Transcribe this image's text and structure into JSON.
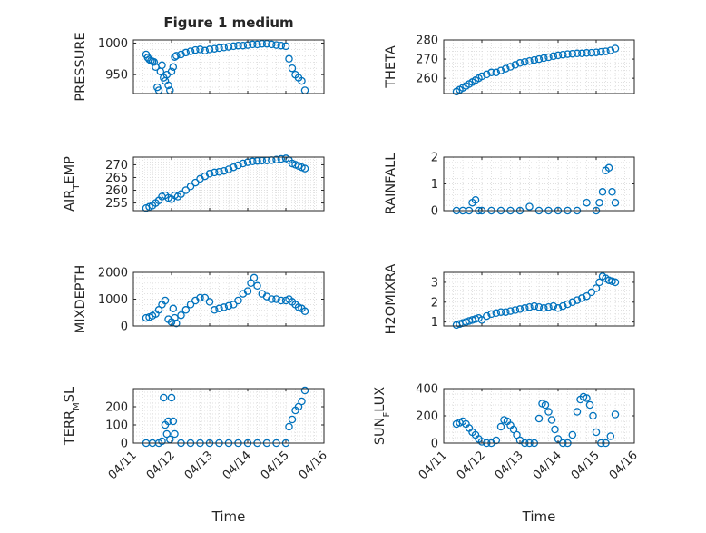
{
  "title": "Figure 1 medium",
  "accent_color": "#0072BD",
  "xlabel": "Time",
  "x_ticks": [
    "04/11",
    "04/12",
    "04/13",
    "04/14",
    "04/15",
    "04/16"
  ],
  "chart_data": [
    {
      "type": "scatter",
      "ylabel": "PRESSURE",
      "ylim": [
        920,
        1005
      ],
      "yticks": [
        950,
        1000
      ],
      "grid": true,
      "x": [
        "04/11 08:00",
        "04/11 09:00",
        "04/11 10:00",
        "04/11 11:00",
        "04/11 12:00",
        "04/11 13:00",
        "04/11 14:00",
        "04/11 15:00",
        "04/11 16:00",
        "04/11 17:00",
        "04/11 18:00",
        "04/11 19:00",
        "04/11 20:00",
        "04/11 21:00",
        "04/11 22:00",
        "04/11 23:00",
        "04/12 00:00",
        "04/12 01:00",
        "04/12 02:00",
        "04/12 03:00",
        "04/12 06:00",
        "04/12 09:00",
        "04/12 12:00",
        "04/12 15:00",
        "04/12 18:00",
        "04/12 21:00",
        "04/13 00:00",
        "04/13 03:00",
        "04/13 06:00",
        "04/13 09:00",
        "04/13 12:00",
        "04/13 15:00",
        "04/13 18:00",
        "04/13 21:00",
        "04/14 00:00",
        "04/14 03:00",
        "04/14 06:00",
        "04/14 09:00",
        "04/14 12:00",
        "04/14 15:00",
        "04/14 18:00",
        "04/14 21:00",
        "04/15 00:00",
        "04/15 02:00",
        "04/15 04:00",
        "04/15 06:00",
        "04/15 08:00",
        "04/15 10:00",
        "04/15 12:00"
      ],
      "y": [
        982,
        977,
        974,
        972,
        971,
        970,
        962,
        930,
        925,
        955,
        965,
        945,
        940,
        950,
        933,
        925,
        955,
        962,
        978,
        980,
        982,
        985,
        987,
        989,
        990,
        988,
        990,
        991,
        992,
        993,
        994,
        995,
        996,
        996,
        997,
        998,
        998,
        999,
        999,
        998,
        997,
        996,
        995,
        975,
        960,
        950,
        945,
        940,
        925
      ]
    },
    {
      "type": "scatter",
      "ylabel": "THETA",
      "ylim": [
        252,
        280
      ],
      "yticks": [
        260,
        270,
        280
      ],
      "grid": true,
      "x": [
        "04/11 08:00",
        "04/11 10:00",
        "04/11 12:00",
        "04/11 14:00",
        "04/11 16:00",
        "04/11 18:00",
        "04/11 20:00",
        "04/11 22:00",
        "04/12 00:00",
        "04/12 03:00",
        "04/12 06:00",
        "04/12 09:00",
        "04/12 12:00",
        "04/12 15:00",
        "04/12 18:00",
        "04/12 21:00",
        "04/13 00:00",
        "04/13 03:00",
        "04/13 06:00",
        "04/13 09:00",
        "04/13 12:00",
        "04/13 15:00",
        "04/13 18:00",
        "04/13 21:00",
        "04/14 00:00",
        "04/14 03:00",
        "04/14 06:00",
        "04/14 09:00",
        "04/14 12:00",
        "04/14 15:00",
        "04/14 18:00",
        "04/14 21:00",
        "04/15 00:00",
        "04/15 03:00",
        "04/15 06:00",
        "04/15 09:00",
        "04/15 12:00"
      ],
      "y": [
        253,
        254,
        255,
        256,
        257,
        258,
        259,
        260,
        261,
        262,
        263,
        263,
        264,
        265,
        266,
        267,
        268,
        268.5,
        269,
        269.5,
        270,
        270.5,
        271,
        271.5,
        272,
        272.3,
        272.6,
        272.8,
        273,
        273,
        273.2,
        273.3,
        273.5,
        273.8,
        274,
        274.5,
        275.5
      ]
    },
    {
      "type": "scatter",
      "ylabel": "AIR_TEMP",
      "ylim": [
        252,
        273
      ],
      "yticks": [
        255,
        260,
        265,
        270
      ],
      "grid": true,
      "x": [
        "04/11 08:00",
        "04/11 10:00",
        "04/11 12:00",
        "04/11 14:00",
        "04/11 16:00",
        "04/11 18:00",
        "04/11 20:00",
        "04/11 22:00",
        "04/12 00:00",
        "04/12 02:00",
        "04/12 04:00",
        "04/12 06:00",
        "04/12 09:00",
        "04/12 12:00",
        "04/12 15:00",
        "04/12 18:00",
        "04/12 21:00",
        "04/13 00:00",
        "04/13 03:00",
        "04/13 06:00",
        "04/13 09:00",
        "04/13 12:00",
        "04/13 15:00",
        "04/13 18:00",
        "04/13 21:00",
        "04/14 00:00",
        "04/14 03:00",
        "04/14 06:00",
        "04/14 09:00",
        "04/14 12:00",
        "04/14 15:00",
        "04/14 18:00",
        "04/14 21:00",
        "04/15 00:00",
        "04/15 02:00",
        "04/15 04:00",
        "04/15 06:00",
        "04/15 08:00",
        "04/15 10:00",
        "04/15 12:00"
      ],
      "y": [
        253,
        253.5,
        254,
        255,
        256,
        257.5,
        258,
        257,
        256.5,
        258,
        257.5,
        258.5,
        260,
        261.5,
        263,
        264.5,
        265.5,
        266.5,
        267,
        267.2,
        267.6,
        268.2,
        269,
        269.8,
        270.5,
        271,
        271.3,
        271.5,
        271.6,
        271.7,
        271.8,
        272,
        272.3,
        272.5,
        271.8,
        270.5,
        270,
        269.5,
        269,
        268.5
      ]
    },
    {
      "type": "scatter",
      "ylabel": "RAINFALL",
      "ylim": [
        0,
        2
      ],
      "yticks": [
        0,
        1,
        2
      ],
      "grid": true,
      "x": [
        "04/11 08:00",
        "04/11 12:00",
        "04/11 16:00",
        "04/11 18:00",
        "04/11 20:00",
        "04/11 22:00",
        "04/12 00:00",
        "04/12 06:00",
        "04/12 12:00",
        "04/12 18:00",
        "04/13 00:00",
        "04/13 06:00",
        "04/13 12:00",
        "04/13 18:00",
        "04/14 00:00",
        "04/14 06:00",
        "04/14 12:00",
        "04/14 18:00",
        "04/15 00:00",
        "04/15 02:00",
        "04/15 04:00",
        "04/15 06:00",
        "04/15 08:00",
        "04/15 10:00",
        "04/15 12:00"
      ],
      "y": [
        0,
        0,
        0,
        0.3,
        0.4,
        0,
        0,
        0,
        0,
        0,
        0,
        0.15,
        0,
        0,
        0,
        0,
        0,
        0.3,
        0,
        0.3,
        0.7,
        1.5,
        1.6,
        0.7,
        0.3
      ]
    },
    {
      "type": "scatter",
      "ylabel": "MIXDEPTH",
      "ylim": [
        0,
        2000
      ],
      "yticks": [
        0,
        1000,
        2000
      ],
      "grid": true,
      "x": [
        "04/11 08:00",
        "04/11 10:00",
        "04/11 12:00",
        "04/11 14:00",
        "04/11 16:00",
        "04/11 18:00",
        "04/11 20:00",
        "04/11 22:00",
        "04/12 00:00",
        "04/12 01:00",
        "04/12 02:00",
        "04/12 03:00",
        "04/12 06:00",
        "04/12 09:00",
        "04/12 12:00",
        "04/12 15:00",
        "04/12 18:00",
        "04/12 21:00",
        "04/13 00:00",
        "04/13 03:00",
        "04/13 06:00",
        "04/13 09:00",
        "04/13 12:00",
        "04/13 15:00",
        "04/13 18:00",
        "04/13 21:00",
        "04/14 00:00",
        "04/14 02:00",
        "04/14 04:00",
        "04/14 06:00",
        "04/14 09:00",
        "04/14 12:00",
        "04/14 15:00",
        "04/14 18:00",
        "04/14 21:00",
        "04/15 00:00",
        "04/15 02:00",
        "04/15 04:00",
        "04/15 06:00",
        "04/15 08:00",
        "04/15 10:00",
        "04/15 12:00"
      ],
      "y": [
        300,
        330,
        380,
        450,
        600,
        800,
        950,
        250,
        150,
        650,
        300,
        100,
        400,
        600,
        800,
        950,
        1050,
        1050,
        900,
        600,
        650,
        700,
        750,
        800,
        950,
        1200,
        1300,
        1600,
        1800,
        1500,
        1200,
        1100,
        1000,
        1000,
        950,
        950,
        1000,
        900,
        800,
        700,
        650,
        550
      ]
    },
    {
      "type": "scatter",
      "ylabel": "H2OMIXRA",
      "ylim": [
        0.8,
        3.5
      ],
      "yticks": [
        1,
        2,
        3
      ],
      "grid": true,
      "x": [
        "04/11 08:00",
        "04/11 10:00",
        "04/11 12:00",
        "04/11 14:00",
        "04/11 16:00",
        "04/11 18:00",
        "04/11 20:00",
        "04/11 22:00",
        "04/12 00:00",
        "04/12 03:00",
        "04/12 06:00",
        "04/12 09:00",
        "04/12 12:00",
        "04/12 15:00",
        "04/12 18:00",
        "04/12 21:00",
        "04/13 00:00",
        "04/13 03:00",
        "04/13 06:00",
        "04/13 09:00",
        "04/13 12:00",
        "04/13 15:00",
        "04/13 18:00",
        "04/13 21:00",
        "04/14 00:00",
        "04/14 03:00",
        "04/14 06:00",
        "04/14 09:00",
        "04/14 12:00",
        "04/14 15:00",
        "04/14 18:00",
        "04/14 21:00",
        "04/15 00:00",
        "04/15 02:00",
        "04/15 04:00",
        "04/15 06:00",
        "04/15 08:00",
        "04/15 10:00",
        "04/15 12:00"
      ],
      "y": [
        0.85,
        0.9,
        0.95,
        1.0,
        1.05,
        1.1,
        1.15,
        1.2,
        1.1,
        1.3,
        1.4,
        1.45,
        1.5,
        1.5,
        1.55,
        1.6,
        1.65,
        1.7,
        1.75,
        1.8,
        1.75,
        1.7,
        1.75,
        1.8,
        1.7,
        1.8,
        1.9,
        2.0,
        2.1,
        2.2,
        2.3,
        2.5,
        2.7,
        3.0,
        3.3,
        3.2,
        3.1,
        3.05,
        3.0
      ]
    },
    {
      "type": "scatter",
      "ylabel": "TERR_MSL",
      "ylim": [
        0,
        300
      ],
      "yticks": [
        0,
        100,
        200
      ],
      "grid": true,
      "x": [
        "04/11 08:00",
        "04/11 12:00",
        "04/11 16:00",
        "04/11 18:00",
        "04/11 19:00",
        "04/11 20:00",
        "04/11 21:00",
        "04/11 22:00",
        "04/11 23:00",
        "04/12 00:00",
        "04/12 01:00",
        "04/12 02:00",
        "04/12 06:00",
        "04/12 12:00",
        "04/12 18:00",
        "04/13 00:00",
        "04/13 06:00",
        "04/13 12:00",
        "04/13 18:00",
        "04/14 00:00",
        "04/14 06:00",
        "04/14 12:00",
        "04/14 18:00",
        "04/15 00:00",
        "04/15 02:00",
        "04/15 04:00",
        "04/15 06:00",
        "04/15 08:00",
        "04/15 10:00",
        "04/15 12:00"
      ],
      "y": [
        0,
        0,
        0,
        10,
        250,
        100,
        50,
        120,
        20,
        250,
        120,
        50,
        0,
        0,
        0,
        0,
        0,
        0,
        0,
        0,
        0,
        0,
        0,
        0,
        90,
        130,
        180,
        200,
        230,
        290
      ]
    },
    {
      "type": "scatter",
      "ylabel": "SUN_FLUX",
      "ylim": [
        0,
        400
      ],
      "yticks": [
        0,
        200,
        400
      ],
      "grid": true,
      "x": [
        "04/11 08:00",
        "04/11 10:00",
        "04/11 12:00",
        "04/11 14:00",
        "04/11 16:00",
        "04/11 18:00",
        "04/11 20:00",
        "04/11 22:00",
        "04/12 00:00",
        "04/12 03:00",
        "04/12 06:00",
        "04/12 09:00",
        "04/12 12:00",
        "04/12 14:00",
        "04/12 16:00",
        "04/12 18:00",
        "04/12 20:00",
        "04/12 22:00",
        "04/13 00:00",
        "04/13 03:00",
        "04/13 06:00",
        "04/13 09:00",
        "04/13 12:00",
        "04/13 14:00",
        "04/13 16:00",
        "04/13 18:00",
        "04/13 20:00",
        "04/13 22:00",
        "04/14 00:00",
        "04/14 03:00",
        "04/14 06:00",
        "04/14 09:00",
        "04/14 12:00",
        "04/14 14:00",
        "04/14 16:00",
        "04/14 18:00",
        "04/14 20:00",
        "04/14 22:00",
        "04/15 00:00",
        "04/15 03:00",
        "04/15 06:00",
        "04/15 09:00",
        "04/15 12:00"
      ],
      "y": [
        140,
        150,
        160,
        140,
        110,
        80,
        60,
        30,
        10,
        0,
        0,
        20,
        120,
        170,
        160,
        130,
        100,
        60,
        20,
        0,
        0,
        0,
        180,
        290,
        280,
        230,
        170,
        100,
        30,
        0,
        0,
        60,
        230,
        320,
        340,
        330,
        280,
        200,
        80,
        0,
        0,
        50,
        210
      ]
    }
  ]
}
